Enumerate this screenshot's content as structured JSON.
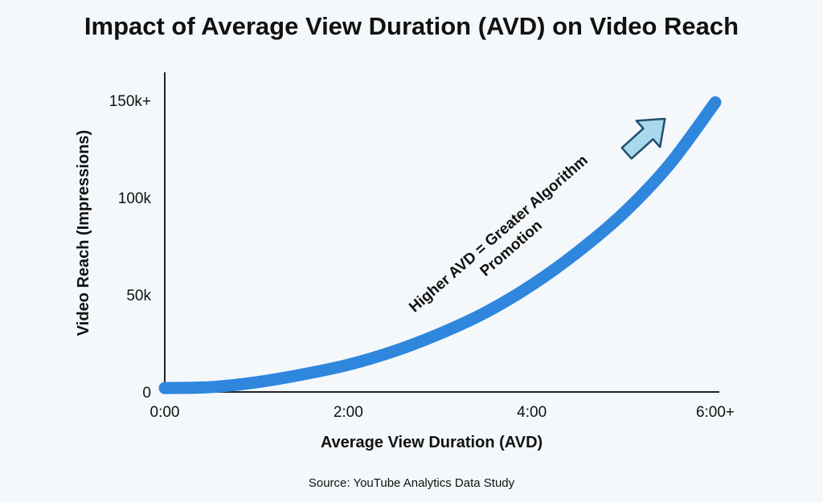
{
  "chart_data": {
    "type": "line",
    "title": "Impact of Average View Duration (AVD) on Video Reach",
    "xlabel": "Average View Duration (AVD)",
    "ylabel": "Video Reach (Impressions)",
    "xlim": [
      0,
      6
    ],
    "ylim": [
      0,
      150000
    ],
    "x_ticks": [
      {
        "value": 0,
        "label": "0:00"
      },
      {
        "value": 2,
        "label": "2:00"
      },
      {
        "value": 4,
        "label": "4:00"
      },
      {
        "value": 6,
        "label": "6:00+"
      }
    ],
    "y_ticks": [
      {
        "value": 0,
        "label": "0"
      },
      {
        "value": 50000,
        "label": "50k"
      },
      {
        "value": 100000,
        "label": "100k"
      },
      {
        "value": 150000,
        "label": "150k+"
      }
    ],
    "grid": false,
    "series": [
      {
        "color": "#2f86dd",
        "x": [
          0,
          0.5,
          1,
          1.5,
          2,
          2.5,
          3,
          3.5,
          4,
          4.5,
          5,
          5.5,
          6
        ],
        "values": [
          2000,
          2500,
          5000,
          9000,
          14000,
          21000,
          30000,
          41000,
          55000,
          72000,
          92000,
          117000,
          149000
        ]
      }
    ],
    "annotation": {
      "lines": [
        "Higher AVD = Greater Algorithm",
        "Promotion"
      ],
      "arrow_color": "#a9d7ec"
    },
    "source": "Source: YouTube Analytics Data Study"
  }
}
